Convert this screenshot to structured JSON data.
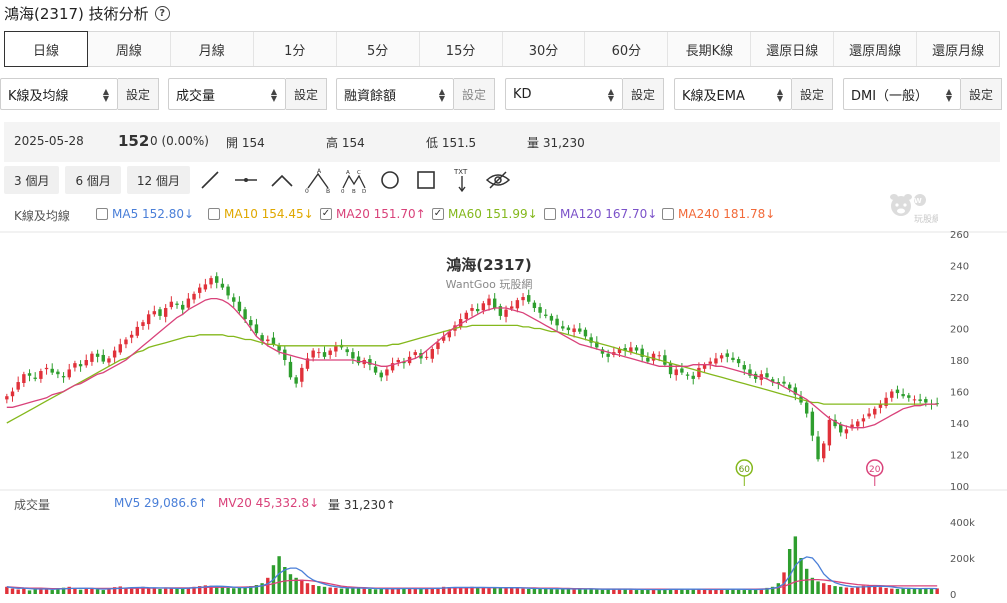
{
  "header": {
    "title": "鴻海(2317) 技術分析",
    "help": "?"
  },
  "periods": [
    "日線",
    "周線",
    "月線",
    "1分",
    "5分",
    "15分",
    "30分",
    "60分",
    "長期K線",
    "還原日線",
    "還原周線",
    "還原月線"
  ],
  "indicators": [
    {
      "value": "K線及均線",
      "button": "設定"
    },
    {
      "value": "成交量",
      "button": "設定"
    },
    {
      "value": "融資餘額",
      "button": "設定"
    },
    {
      "value": "KD",
      "button": "設定"
    },
    {
      "value": "K線及EMA",
      "button": "設定"
    },
    {
      "value": "DMI（一般）",
      "button": "設定"
    }
  ],
  "quote": {
    "date": "2025-05-28",
    "price": "152",
    "change": "0 (0.00%)",
    "open": "開 154",
    "high": "高 154",
    "low": "低 151.5",
    "volume": "量 31,230"
  },
  "ranges": [
    "3 個月",
    "6 個月",
    "12 個月"
  ],
  "tools": [
    "line-tool-icon",
    "horizontal-line-icon",
    "angle-icon",
    "abc-pattern-icon",
    "abcd-pattern-icon",
    "circle-icon",
    "rectangle-icon",
    "text-arrow-icon",
    "hide-icon"
  ],
  "ma_legend": {
    "label": "K線及均線",
    "items": [
      {
        "text": "MA5 152.80↓",
        "color": "#4a7fd8",
        "checked": false
      },
      {
        "text": "MA10 154.45↓",
        "color": "#e0a800",
        "checked": false
      },
      {
        "text": "MA20 151.70↑",
        "color": "#d9427a",
        "checked": true
      },
      {
        "text": "MA60 151.99↓",
        "color": "#84b81c",
        "checked": true
      },
      {
        "text": "MA120 167.70↓",
        "color": "#7b52c9",
        "checked": false
      },
      {
        "text": "MA240 181.78↓",
        "color": "#f26a3a",
        "checked": false
      }
    ]
  },
  "volume_legend": {
    "label": "成交量",
    "items": [
      {
        "text": "MV5 29,086.6↑",
        "color": "#4a7fd8"
      },
      {
        "text": "MV20 45,332.8↓",
        "color": "#d9427a"
      },
      {
        "text": "量 31,230↑",
        "color": "#333333"
      }
    ]
  },
  "watermark": {
    "logo_text": "玩股網"
  },
  "chart_data": {
    "type": "candlestick",
    "title": "鴻海(2317)",
    "subtitle": "WantGoo 玩股網",
    "price_axis": {
      "ylim": [
        100,
        260
      ],
      "ticks": [
        100,
        120,
        140,
        160,
        180,
        200,
        220,
        240,
        260
      ]
    },
    "volume_axis": {
      "ylim": [
        0,
        400000
      ],
      "ticks": [
        "0",
        "200k",
        "400k"
      ]
    },
    "close_series": [
      157,
      160,
      166,
      171,
      170,
      168,
      173,
      175,
      172,
      171,
      169,
      174,
      178,
      176,
      180,
      184,
      182,
      179,
      181,
      186,
      190,
      193,
      196,
      201,
      204,
      209,
      211,
      208,
      213,
      217,
      215,
      212,
      219,
      222,
      226,
      228,
      232,
      229,
      226,
      221,
      217,
      211,
      206,
      202,
      197,
      192,
      193,
      190,
      186,
      180,
      169,
      165,
      175,
      181,
      186,
      185,
      182,
      186,
      189,
      188,
      185,
      181,
      178,
      180,
      177,
      172,
      169,
      174,
      178,
      180,
      178,
      182,
      185,
      181,
      182,
      187,
      191,
      195,
      198,
      202,
      206,
      210,
      213,
      211,
      216,
      219,
      213,
      208,
      212,
      214,
      218,
      220,
      217,
      213,
      210,
      208,
      205,
      202,
      200,
      199,
      200,
      198,
      195,
      191,
      188,
      184,
      182,
      185,
      187,
      186,
      188,
      186,
      182,
      179,
      184,
      183,
      177,
      171,
      174,
      172,
      170,
      168,
      175,
      177,
      179,
      181,
      183,
      182,
      180,
      178,
      174,
      170,
      168,
      171,
      169,
      166,
      165,
      165,
      162,
      158,
      153,
      146,
      132,
      117,
      127,
      142,
      138,
      134,
      136,
      139,
      141,
      143,
      146,
      149,
      152,
      156,
      160,
      159,
      157,
      156,
      155,
      154,
      153,
      152,
      152
    ],
    "ma20": [
      150,
      150,
      151,
      152,
      153,
      154,
      155,
      156,
      158,
      159,
      160,
      162,
      164,
      165,
      167,
      169,
      171,
      172,
      174,
      176,
      178,
      180,
      183,
      186,
      189,
      192,
      195,
      198,
      201,
      204,
      207,
      209,
      212,
      214,
      216,
      218,
      219,
      219,
      218,
      216,
      213,
      209,
      205,
      200,
      195,
      192,
      189,
      187,
      185,
      184,
      183,
      182,
      181,
      180,
      180,
      180,
      180,
      180,
      180,
      180,
      180,
      180,
      179,
      179,
      178,
      177,
      176,
      176,
      177,
      178,
      179,
      180,
      181,
      183,
      186,
      189,
      192,
      195,
      198,
      201,
      203,
      205,
      207,
      209,
      211,
      212,
      213,
      213,
      213,
      212,
      211,
      210,
      208,
      206,
      204,
      202,
      200,
      198,
      196,
      194,
      192,
      190,
      189,
      188,
      187,
      186,
      185,
      184,
      183,
      182,
      181,
      180,
      179,
      178,
      177,
      176,
      176,
      176,
      176,
      176,
      176,
      177,
      177,
      177,
      177,
      176,
      176,
      175,
      174,
      173,
      172,
      171,
      170,
      169,
      168,
      166,
      165,
      163,
      161,
      159,
      157,
      155,
      152,
      149,
      146,
      143,
      141,
      139,
      138,
      137,
      137,
      137,
      138,
      139,
      141,
      143,
      145,
      147,
      149,
      150,
      151,
      151,
      152,
      152,
      152
    ],
    "ma60": [
      140,
      142,
      144,
      146,
      148,
      150,
      152,
      154,
      156,
      158,
      160,
      162,
      164,
      166,
      168,
      170,
      172,
      174,
      176,
      178,
      180,
      181,
      183,
      185,
      186,
      188,
      189,
      190,
      191,
      192,
      193,
      194,
      195,
      195,
      196,
      196,
      196,
      196,
      196,
      195,
      195,
      194,
      193,
      193,
      192,
      191,
      190,
      190,
      189,
      189,
      189,
      189,
      189,
      189,
      189,
      189,
      189,
      189,
      189,
      189,
      189,
      189,
      189,
      189,
      189,
      189,
      189,
      189,
      190,
      190,
      191,
      192,
      193,
      194,
      195,
      196,
      197,
      198,
      199,
      200,
      201,
      201,
      202,
      202,
      202,
      202,
      202,
      202,
      202,
      202,
      202,
      201,
      201,
      200,
      200,
      199,
      198,
      198,
      197,
      196,
      195,
      194,
      193,
      192,
      191,
      190,
      189,
      188,
      187,
      186,
      185,
      184,
      183,
      182,
      181,
      180,
      179,
      178,
      177,
      176,
      175,
      174,
      173,
      172,
      171,
      170,
      169,
      168,
      167,
      166,
      165,
      164,
      163,
      162,
      161,
      160,
      159,
      158,
      157,
      156,
      155,
      154,
      153,
      153,
      152,
      152,
      152,
      152,
      152,
      152,
      152,
      152,
      152,
      152,
      152,
      152,
      152,
      152,
      152,
      152,
      152,
      152,
      152,
      152,
      152
    ],
    "volume_k": [
      40,
      30,
      25,
      35,
      20,
      28,
      32,
      26,
      22,
      30,
      35,
      40,
      28,
      24,
      30,
      34,
      26,
      22,
      30,
      38,
      42,
      36,
      30,
      34,
      40,
      36,
      32,
      28,
      30,
      34,
      32,
      30,
      36,
      40,
      44,
      48,
      46,
      40,
      36,
      34,
      32,
      36,
      40,
      44,
      50,
      60,
      90,
      160,
      210,
      150,
      110,
      90,
      80,
      60,
      50,
      44,
      40,
      36,
      34,
      30,
      32,
      34,
      36,
      30,
      28,
      26,
      30,
      34,
      30,
      28,
      30,
      32,
      30,
      28,
      30,
      34,
      36,
      40,
      38,
      36,
      34,
      36,
      40,
      38,
      34,
      32,
      36,
      38,
      36,
      34,
      32,
      30,
      28,
      30,
      32,
      30,
      28,
      26,
      28,
      30,
      28,
      26,
      28,
      30,
      26,
      24,
      26,
      28,
      30,
      26,
      24,
      22,
      26,
      28,
      24,
      22,
      26,
      30,
      28,
      26,
      24,
      26,
      28,
      24,
      22,
      26,
      28,
      30,
      26,
      24,
      22,
      26,
      28,
      30,
      34,
      40,
      60,
      120,
      250,
      320,
      200,
      140,
      90,
      70,
      60,
      50,
      44,
      40,
      36,
      34,
      40,
      46,
      50,
      44,
      38,
      34,
      30,
      28,
      30,
      34,
      30,
      28,
      30,
      32,
      31
    ],
    "mv20_k": [
      40,
      38,
      36,
      34,
      33,
      32,
      32,
      31,
      30,
      30,
      30,
      31,
      31,
      31,
      31,
      31,
      31,
      31,
      31,
      31,
      32,
      32,
      32,
      32,
      33,
      33,
      33,
      33,
      34,
      34,
      34,
      34,
      34,
      35,
      36,
      37,
      38,
      38,
      38,
      38,
      38,
      38,
      39,
      40,
      42,
      45,
      50,
      58,
      66,
      72,
      75,
      76,
      76,
      75,
      72,
      68,
      62,
      56,
      50,
      44,
      40,
      38,
      36,
      35,
      34,
      33,
      32,
      32,
      32,
      32,
      32,
      32,
      32,
      32,
      32,
      32,
      33,
      33,
      34,
      34,
      34,
      34,
      35,
      35,
      35,
      35,
      35,
      35,
      35,
      35,
      35,
      34,
      34,
      34,
      33,
      33,
      32,
      32,
      31,
      31,
      30,
      30,
      29,
      29,
      28,
      28,
      28,
      28,
      28,
      28,
      28,
      27,
      27,
      27,
      27,
      27,
      27,
      27,
      27,
      27,
      27,
      27,
      27,
      27,
      27,
      27,
      27,
      27,
      27,
      27,
      27,
      27,
      27,
      28,
      29,
      31,
      35,
      42,
      55,
      68,
      75,
      78,
      80,
      80,
      78,
      74,
      70,
      65,
      60,
      56,
      52,
      50,
      48,
      47,
      46,
      45,
      45,
      45,
      45,
      45,
      45,
      45,
      45,
      45,
      45
    ],
    "markers": [
      {
        "label": "60",
        "index": 130
      },
      {
        "label": "20",
        "index": 153
      }
    ]
  }
}
